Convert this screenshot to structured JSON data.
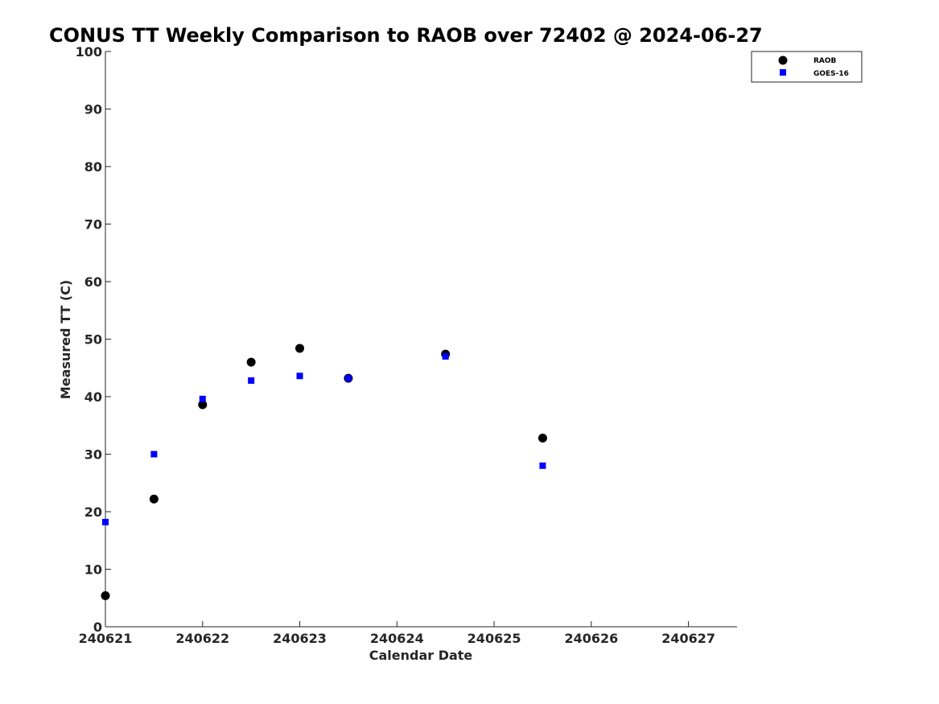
{
  "chart_data": {
    "type": "scatter",
    "title": "CONUS TT Weekly Comparison to RAOB over 72402 @ 2024-06-27",
    "xlabel": "Calendar Date",
    "ylabel": "Measured TT (C)",
    "xlim": [
      "240621",
      "240627 12:00"
    ],
    "ylim": [
      0,
      100
    ],
    "x_ticks": [
      "240621",
      "240622",
      "240623",
      "240624",
      "240625",
      "240626",
      "240627"
    ],
    "y_ticks": [
      0,
      10,
      20,
      30,
      40,
      50,
      60,
      70,
      80,
      90,
      100
    ],
    "grid": false,
    "legend_position": "top-right",
    "series": [
      {
        "name": "RAOB",
        "marker": "circle",
        "color": "#000000",
        "points": [
          {
            "x": "240621 00:00",
            "y": 5.4
          },
          {
            "x": "240621 12:00",
            "y": 22.2
          },
          {
            "x": "240622 00:00",
            "y": 38.6
          },
          {
            "x": "240622 12:00",
            "y": 46.0
          },
          {
            "x": "240623 00:00",
            "y": 48.4
          },
          {
            "x": "240623 12:00",
            "y": 43.2
          },
          {
            "x": "240624 12:00",
            "y": 47.4
          },
          {
            "x": "240625 12:00",
            "y": 32.8
          }
        ]
      },
      {
        "name": "GOES-16",
        "marker": "square",
        "color": "#0000ff",
        "points": [
          {
            "x": "240621 00:00",
            "y": 18.2
          },
          {
            "x": "240621 12:00",
            "y": 30.0
          },
          {
            "x": "240622 00:00",
            "y": 39.6
          },
          {
            "x": "240622 12:00",
            "y": 42.8
          },
          {
            "x": "240623 00:00",
            "y": 43.6
          },
          {
            "x": "240623 12:00",
            "y": 43.2
          },
          {
            "x": "240624 12:00",
            "y": 47.0
          },
          {
            "x": "240625 12:00",
            "y": 28.0
          }
        ]
      }
    ]
  }
}
